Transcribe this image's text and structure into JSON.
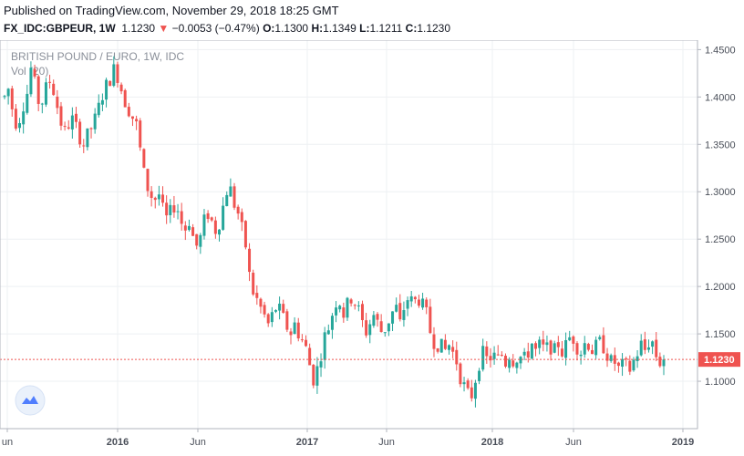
{
  "header": {
    "published": "Published on TradingView.com, November 29, 2018 18:25 GMT",
    "symbol": "FX_IDC:GBPEUR, 1W",
    "last": "1.1230",
    "arrow": "▼",
    "change": "−0.0053 (−0.47%)",
    "o_label": "O:",
    "o": "1.1300",
    "h_label": "H:",
    "h": "1.1349",
    "l_label": "L:",
    "l": "1.1211",
    "c_label": "C:",
    "c": "1.1230"
  },
  "watermark": {
    "title": "BRITISH POUND / EURO, 1W, IDC",
    "volume": "Vol (20)",
    "logo_icon": "tradingview-logo-icon"
  },
  "colors": {
    "up": "#26a69a",
    "down": "#ef5350",
    "grid": "#eef0f3",
    "axis": "#b2b5be",
    "last_price_line": "#ef5350"
  },
  "chart_data": {
    "type": "candlestick",
    "interval": "1W",
    "ylim": [
      1.05,
      1.46
    ],
    "y_ticks": [
      "1.4500",
      "1.4000",
      "1.3500",
      "1.3000",
      "1.2500",
      "1.2000",
      "1.1500",
      "1.1000"
    ],
    "x_ticks": [
      "un",
      "2016",
      "Jun",
      "2017",
      "Jun",
      "2018",
      "Jun",
      "2019"
    ],
    "last_price": "1.1230",
    "grid": true,
    "close_path": [
      1.4,
      1.41,
      1.38,
      1.37,
      1.39,
      1.4,
      1.43,
      1.41,
      1.39,
      1.4,
      1.42,
      1.41,
      1.39,
      1.37,
      1.36,
      1.38,
      1.37,
      1.36,
      1.35,
      1.36,
      1.37,
      1.38,
      1.4,
      1.41,
      1.42,
      1.43,
      1.42,
      1.4,
      1.39,
      1.38,
      1.37,
      1.34,
      1.31,
      1.3,
      1.29,
      1.3,
      1.28,
      1.27,
      1.28,
      1.29,
      1.27,
      1.26,
      1.27,
      1.25,
      1.24,
      1.26,
      1.28,
      1.27,
      1.26,
      1.27,
      1.29,
      1.31,
      1.29,
      1.28,
      1.26,
      1.24,
      1.2,
      1.19,
      1.18,
      1.17,
      1.16,
      1.17,
      1.18,
      1.17,
      1.16,
      1.15,
      1.16,
      1.15,
      1.14,
      1.13,
      1.1,
      1.11,
      1.13,
      1.15,
      1.16,
      1.18,
      1.19,
      1.17,
      1.18,
      1.19,
      1.18,
      1.17,
      1.15,
      1.16,
      1.17,
      1.16,
      1.15,
      1.16,
      1.17,
      1.18,
      1.16,
      1.18,
      1.19,
      1.18,
      1.19,
      1.18,
      1.17,
      1.15,
      1.14,
      1.14,
      1.13,
      1.14,
      1.13,
      1.12,
      1.1,
      1.09,
      1.08,
      1.1,
      1.12,
      1.13,
      1.12,
      1.13,
      1.12,
      1.13,
      1.12,
      1.13,
      1.12,
      1.13,
      1.12,
      1.13,
      1.14,
      1.13,
      1.14,
      1.13,
      1.14,
      1.13,
      1.14,
      1.13,
      1.14,
      1.15,
      1.14,
      1.13,
      1.14,
      1.14,
      1.13,
      1.14,
      1.14,
      1.13,
      1.12,
      1.12,
      1.11,
      1.12,
      1.11,
      1.12,
      1.13,
      1.14,
      1.13,
      1.15,
      1.13,
      1.12,
      1.123
    ]
  }
}
